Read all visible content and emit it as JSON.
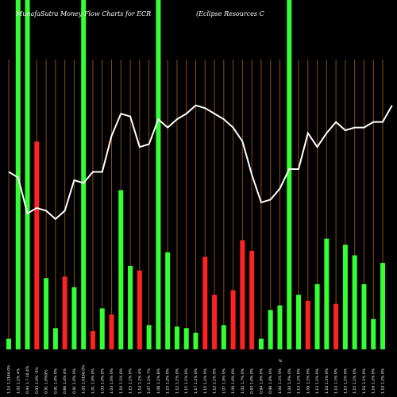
{
  "chart_data": {
    "type": "bar",
    "title": "MunafaSutra  Money Flow  Charts for ECR",
    "subtitle": "(Eclipse   Resources C",
    "xlabel": "",
    "ylabel": "",
    "x_tick_labels": [
      "1.14 1.2146.0%",
      "1.02 1.1% 4%",
      "0.94 1.7-16.4%",
      "0.93 1.0% -0%",
      "0.91 1.0%0%",
      "0.91 1.0% 0%",
      "0.86 1.4% 4%",
      "0.91 1.0% 0%",
      "1.02 1.0196.0%",
      "1.01 1.0% 0%",
      "1.03 1.0% 0%",
      "1.03 1.0% 0%",
      "1.10 1.1% 0%",
      "1.15 1.1% 0%",
      "1.14 1.1% 4%",
      "1.07 1.1% 7%",
      "1.08 1.1% 8%",
      "1.15 1.2% 0%",
      "1.12 1.1% 0%",
      "1.15 1.1% 0%",
      "1.17 1.1% 0%",
      "1.15 1.1% 0%",
      "1.12 1.1% 0%",
      "1.07 1.0% 0%",
      "1.09 1.0% 0%",
      "1.02 1.7% 0%",
      "0.93 1.0% 0%",
      "0.94 1.0% 0%",
      "0.98 1.0% 0%",
      "1.04 1.1% 0%",
      "1.04 1.0% 0%",
      "1.13 1.1% 0%",
      "1.09 1.1% 0%",
      "1.13 1.1% 0%",
      "1.16 1.1% 0%",
      "1.14 1.1% 0%",
      "1.15 1.1% 0%",
      "1.15 1.1% 0%",
      "1.16 1.1% 0%",
      "1.16 1.2% 0%",
      "1.19 1.2% 0%"
    ],
    "x_marker_label": "%",
    "bars": [
      {
        "value": 3.5,
        "color": "green",
        "highlight": false
      },
      {
        "value": 88.0,
        "color": "green",
        "highlight": true
      },
      {
        "value": 100.0,
        "color": "green",
        "highlight": true
      },
      {
        "value": 68.5,
        "color": "red",
        "highlight": false
      },
      {
        "value": 23.5,
        "color": "green",
        "highlight": false
      },
      {
        "value": 7.0,
        "color": "green",
        "highlight": false
      },
      {
        "value": 24.0,
        "color": "red",
        "highlight": false
      },
      {
        "value": 20.5,
        "color": "green",
        "highlight": false
      },
      {
        "value": 100.0,
        "color": "green",
        "highlight": true
      },
      {
        "value": 6.0,
        "color": "red",
        "highlight": false
      },
      {
        "value": 13.5,
        "color": "green",
        "highlight": false
      },
      {
        "value": 11.5,
        "color": "red",
        "highlight": false
      },
      {
        "value": 52.5,
        "color": "green",
        "highlight": false
      },
      {
        "value": 27.5,
        "color": "green",
        "highlight": false
      },
      {
        "value": 26.0,
        "color": "red",
        "highlight": false
      },
      {
        "value": 8.0,
        "color": "green",
        "highlight": false
      },
      {
        "value": 100.0,
        "color": "green",
        "highlight": true
      },
      {
        "value": 32.0,
        "color": "green",
        "highlight": false
      },
      {
        "value": 7.5,
        "color": "green",
        "highlight": false
      },
      {
        "value": 7.0,
        "color": "green",
        "highlight": false
      },
      {
        "value": 5.5,
        "color": "green",
        "highlight": false
      },
      {
        "value": 30.5,
        "color": "red",
        "highlight": false
      },
      {
        "value": 18.0,
        "color": "red",
        "highlight": false
      },
      {
        "value": 8.0,
        "color": "green",
        "highlight": false
      },
      {
        "value": 19.5,
        "color": "red",
        "highlight": false
      },
      {
        "value": 36.0,
        "color": "red",
        "highlight": false
      },
      {
        "value": 32.5,
        "color": "red",
        "highlight": false
      },
      {
        "value": 3.5,
        "color": "green",
        "highlight": false
      },
      {
        "value": 13.0,
        "color": "green",
        "highlight": false
      },
      {
        "value": 14.5,
        "color": "green",
        "highlight": false
      },
      {
        "value": 100.0,
        "color": "green",
        "highlight": true
      },
      {
        "value": 18.0,
        "color": "green",
        "highlight": false
      },
      {
        "value": 16.0,
        "color": "red",
        "highlight": false
      },
      {
        "value": 21.5,
        "color": "green",
        "highlight": false
      },
      {
        "value": 36.5,
        "color": "green",
        "highlight": false
      },
      {
        "value": 15.0,
        "color": "red",
        "highlight": false
      },
      {
        "value": 34.5,
        "color": "green",
        "highlight": false
      },
      {
        "value": 31.0,
        "color": "green",
        "highlight": false
      },
      {
        "value": 21.5,
        "color": "green",
        "highlight": false
      },
      {
        "value": 10.0,
        "color": "green",
        "highlight": false
      },
      {
        "value": 28.5,
        "color": "green",
        "highlight": false
      }
    ],
    "price_line": [
      1.02,
      1.01,
      0.945,
      0.955,
      0.95,
      0.935,
      0.95,
      1.005,
      1.0,
      1.02,
      1.02,
      1.085,
      1.125,
      1.12,
      1.065,
      1.07,
      1.115,
      1.1,
      1.115,
      1.125,
      1.14,
      1.135,
      1.125,
      1.115,
      1.1,
      1.075,
      1.015,
      0.965,
      0.97,
      0.99,
      1.025,
      1.025,
      1.09,
      1.065,
      1.09,
      1.11,
      1.095,
      1.1,
      1.1,
      1.11,
      1.11,
      1.14
    ],
    "price_range": [
      0.7,
      1.33
    ],
    "volume_range": [
      0,
      100
    ],
    "grid": false,
    "legend": "none",
    "colors": {
      "background": "#000000",
      "up_bar": "#33ff33",
      "down_bar": "#ff2222",
      "highlight_bar": "#33ff33",
      "price_line": "#ffffff",
      "vertical_rule": "#8b4a14",
      "text": "#ffffff"
    }
  }
}
